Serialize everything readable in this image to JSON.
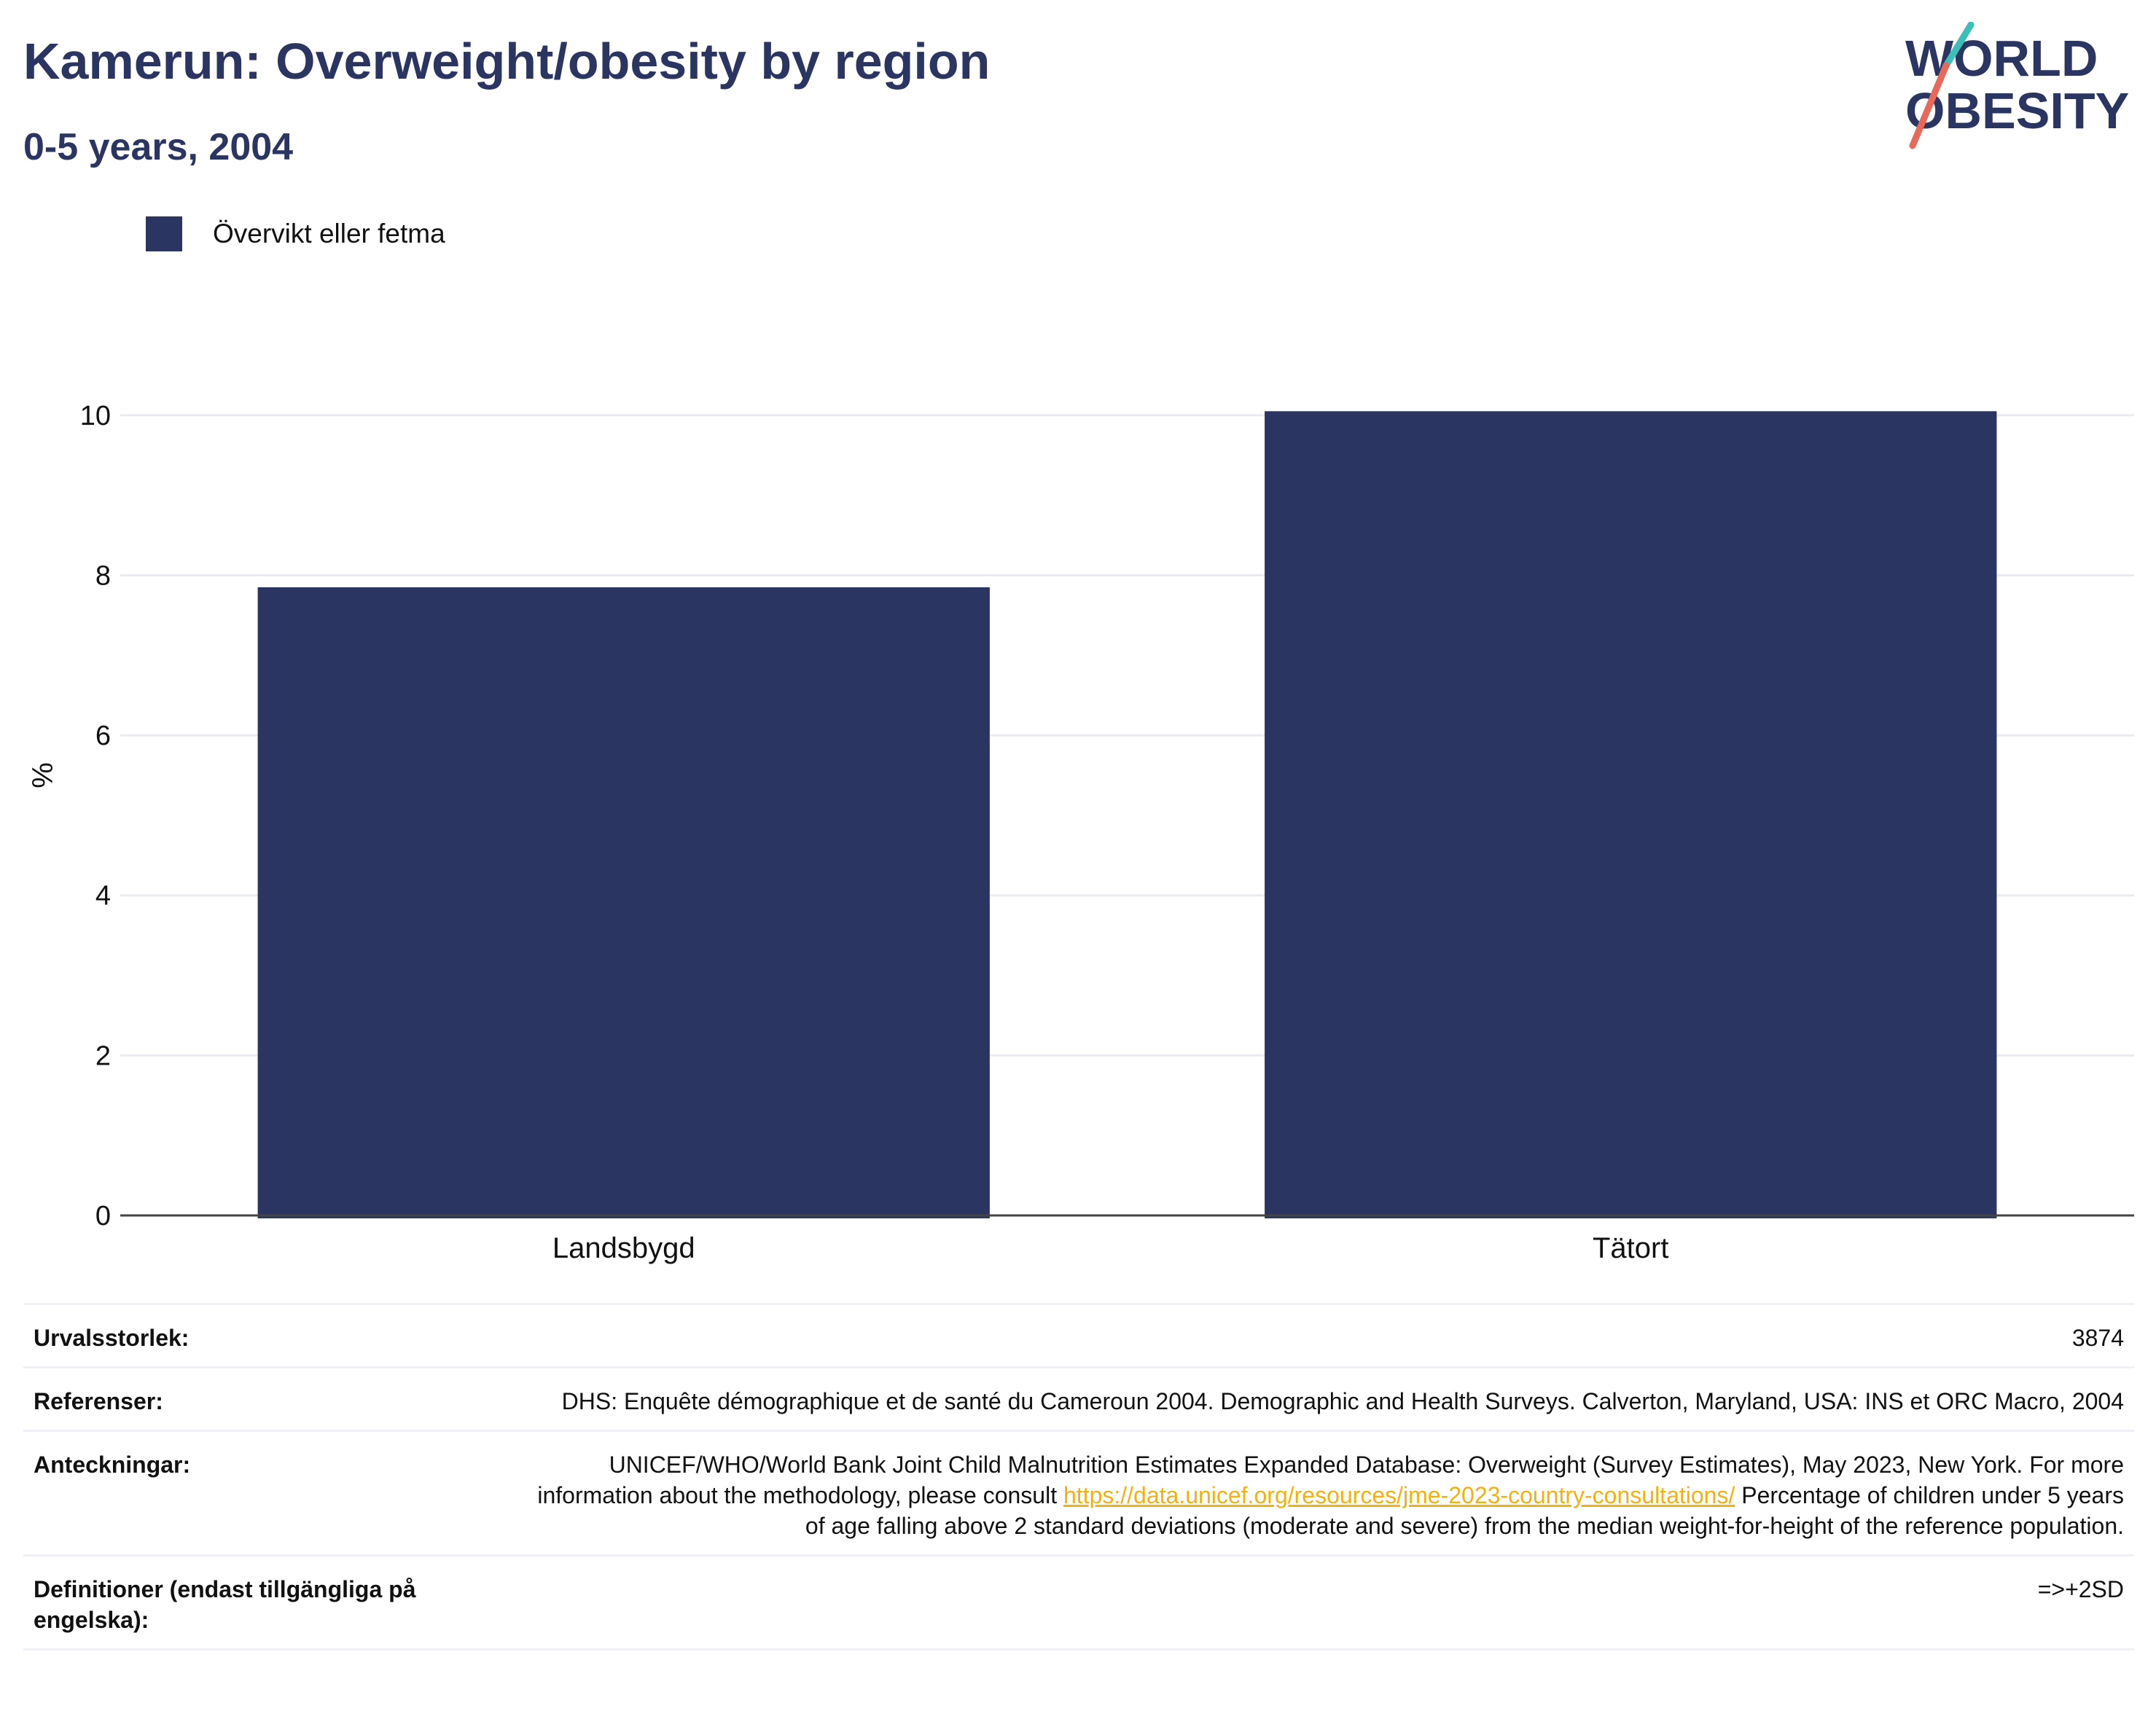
{
  "header": {
    "title": "Kamerun: Overweight/obesity by region",
    "subtitle": "0-5 years, 2004"
  },
  "logo": {
    "line1": "WORLD",
    "line2": "OBESITY",
    "colors": {
      "text": "#2b3561",
      "slash_top": "#3bbfb6",
      "slash_bottom": "#e8685a"
    }
  },
  "colors": {
    "bar": "#2b3561",
    "grid": "#e9ebf1",
    "axis": "#444444",
    "link": "#f2b111"
  },
  "chart_data": {
    "type": "bar",
    "categories": [
      "Landsbygd",
      "Tätort"
    ],
    "series": [
      {
        "name": "Övervikt eller fetma",
        "values": [
          7.85,
          10.05
        ]
      }
    ],
    "ylabel": "%",
    "xlabel": "",
    "ylim": [
      0,
      11
    ],
    "yticks": [
      0,
      2,
      4,
      6,
      8,
      10
    ],
    "grid": true,
    "legend_position": "top-left"
  },
  "meta": {
    "sample_size": {
      "label": "Urvalsstorlek:",
      "value": "3874"
    },
    "references": {
      "label": "Referenser:",
      "value": "DHS: Enquête démographique et de santé du Cameroun 2004. Demographic and Health Surveys. Calverton, Maryland, USA: INS et ORC Macro, 2004"
    },
    "notes": {
      "label": "Anteckningar:",
      "text_before": "UNICEF/WHO/World Bank Joint Child Malnutrition Estimates Expanded Database: Overweight (Survey Estimates), May 2023, New York. For more information about the methodology, please consult",
      "link": "https://data.unicef.org/resources/jme-2023-country-consultations/",
      "text_after": "Percentage of children under 5 years of age falling above 2 standard deviations (moderate and severe) from the median weight-for-height of the reference population."
    },
    "definitions": {
      "label": "Definitioner (endast tillgängliga på engelska):",
      "value": "=>+2SD"
    }
  }
}
